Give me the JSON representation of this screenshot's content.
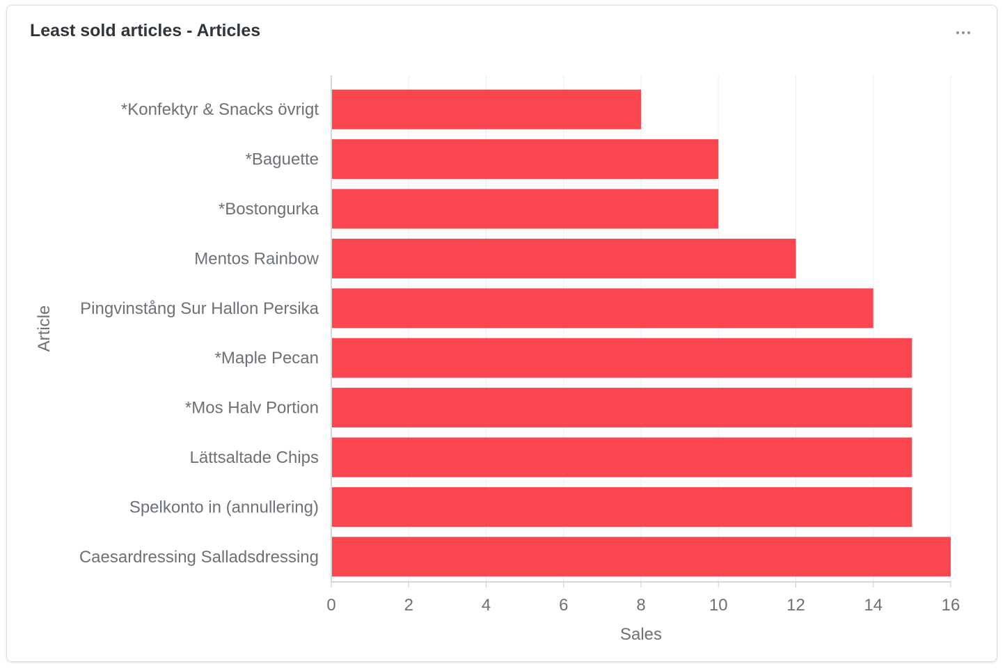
{
  "card": {
    "title": "Least sold articles - Articles",
    "menu_icon": "more-horizontal-icon"
  },
  "colors": {
    "bar": "#fc464f",
    "grid": "#ebedf0",
    "axis": "#c8ccd0",
    "text": "#6b7177",
    "title": "#2e353b"
  },
  "chart_data": {
    "type": "bar",
    "orientation": "horizontal",
    "categories": [
      "*Konfektyr & Snacks övrigt",
      "*Baguette",
      "*Bostongurka",
      "Mentos Rainbow",
      "Pingvinstång Sur Hallon Persika",
      "*Maple Pecan",
      "*Mos Halv Portion",
      "Lättsaltade Chips",
      "Spelkonto in (annullering)",
      "Caesardressing Salladsdressing"
    ],
    "values": [
      8,
      10,
      10,
      12,
      14,
      15,
      15,
      15,
      15,
      16
    ],
    "xlabel": "Sales",
    "ylabel": "Article",
    "xlim": [
      0,
      16
    ],
    "xticks": [
      "0",
      "2",
      "4",
      "6",
      "8",
      "10",
      "12",
      "14",
      "16"
    ],
    "grid": true,
    "legend": "none"
  }
}
